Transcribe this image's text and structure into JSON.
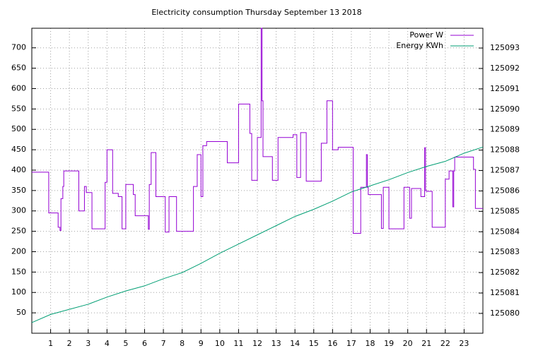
{
  "chart_data": {
    "type": "line",
    "title": "Electricity consumption Thursday September 13 2018",
    "xlim": [
      0,
      24
    ],
    "xticks": [
      1,
      2,
      3,
      4,
      5,
      6,
      7,
      8,
      9,
      10,
      11,
      12,
      13,
      14,
      15,
      16,
      17,
      18,
      19,
      20,
      21,
      22,
      23
    ],
    "ylim": [
      0,
      748
    ],
    "yticks": [
      50,
      100,
      150,
      200,
      250,
      300,
      350,
      400,
      450,
      500,
      550,
      600,
      650,
      700
    ],
    "y2lim": [
      125079.03,
      125093.97
    ],
    "y2ticks": [
      125080,
      125081,
      125082,
      125083,
      125084,
      125085,
      125086,
      125087,
      125088,
      125089,
      125090,
      125091,
      125092,
      125093
    ],
    "grid": true,
    "legend": "top-right",
    "series": [
      {
        "name": "Power W",
        "color": "#9400d3",
        "step": true,
        "x": [
          0,
          0.9,
          1.4,
          1.5,
          1.55,
          1.65,
          1.7,
          2.5,
          2.8,
          2.9,
          3.2,
          3.9,
          4.0,
          4.3,
          4.6,
          4.8,
          5.0,
          5.4,
          5.5,
          6.2,
          6.25,
          6.35,
          6.6,
          7.1,
          7.3,
          7.7,
          8.6,
          8.8,
          9.0,
          9.1,
          9.3,
          10.4,
          11.0,
          11.6,
          11.7,
          12.0,
          12.2,
          12.25,
          12.3,
          12.8,
          13.1,
          13.9,
          14.1,
          14.3,
          14.6,
          15.4,
          15.7,
          16.0,
          16.3,
          17.1,
          17.5,
          17.8,
          17.85,
          17.9,
          18.6,
          18.7,
          19.0,
          19.8,
          20.1,
          20.2,
          20.7,
          20.9,
          20.95,
          21.0,
          21.3,
          22.0,
          22.2,
          22.4,
          22.45,
          22.5,
          23.5,
          23.6,
          24
        ],
        "values": [
          395,
          295,
          260,
          252,
          330,
          360,
          398,
          300,
          360,
          345,
          256,
          370,
          450,
          343,
          335,
          256,
          365,
          340,
          288,
          255,
          365,
          443,
          335,
          248,
          335,
          250,
          360,
          438,
          335,
          460,
          470,
          418,
          562,
          490,
          375,
          480,
          748,
          570,
          433,
          375,
          480,
          487,
          382,
          492,
          373,
          466,
          570,
          450,
          456,
          245,
          358,
          438,
          358,
          340,
          257,
          358,
          256,
          358,
          282,
          355,
          335,
          455,
          350,
          348,
          260,
          378,
          398,
          310,
          398,
          432,
          402,
          306,
          306
        ]
      },
      {
        "name": "Energy KWh",
        "color": "#009e73",
        "axis": "y2",
        "x": [
          0,
          1,
          2,
          3,
          4,
          5,
          6,
          7,
          8,
          9,
          10,
          11,
          12,
          13,
          14,
          15,
          16,
          17,
          18,
          19,
          20,
          21,
          22,
          23,
          24
        ],
        "values": [
          125079.55,
          125079.95,
          125080.2,
          125080.45,
          125080.8,
          125081.1,
          125081.35,
          125081.7,
          125082.0,
          125082.45,
          125082.95,
          125083.4,
          125083.85,
          125084.3,
          125084.75,
          125085.1,
          125085.5,
          125085.95,
          125086.25,
          125086.55,
          125086.9,
          125087.2,
          125087.45,
          125087.85,
          125088.15
        ]
      }
    ]
  }
}
